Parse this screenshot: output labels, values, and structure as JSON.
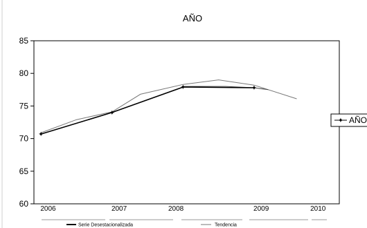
{
  "chart_data": {
    "type": "line",
    "title": "AÑO",
    "ylim": [
      60,
      85
    ],
    "yticks": [
      60,
      65,
      70,
      75,
      80,
      85
    ],
    "xlim": [
      2005.9,
      2010.2
    ],
    "x_tick_labels": [
      "2006",
      "2007",
      "2008",
      "2009",
      "2010"
    ],
    "x_tick_values": [
      2006.1,
      2007.1,
      2007.9,
      2009.1,
      2009.9
    ],
    "grid": false,
    "legend_position": "right",
    "series": [
      {
        "name": "AÑO",
        "color": "#000000",
        "marker": "star",
        "x": [
          2006,
          2007,
          2008,
          2009
        ],
        "y": [
          70.7,
          74.0,
          77.9,
          77.8
        ]
      },
      {
        "name": "",
        "color": "#777777",
        "marker": "none",
        "x": [
          2006,
          2006.5,
          2007,
          2007.4,
          2008,
          2008.5,
          2009,
          2009.6
        ],
        "y": [
          70.9,
          72.9,
          74.1,
          76.8,
          78.3,
          79.0,
          78.2,
          76.1
        ]
      },
      {
        "name": "",
        "color": "#444444",
        "marker": "none",
        "x": [
          2008,
          2008.6,
          2009,
          2009.2
        ],
        "y": [
          78.0,
          78.0,
          77.8,
          77.5
        ]
      }
    ],
    "bottom_legend": [
      {
        "label": "Serie Desestacionalizada",
        "color": "#000000",
        "style": "thick"
      },
      {
        "label": "Tendencia",
        "color": "#777777",
        "style": "thin"
      }
    ]
  }
}
